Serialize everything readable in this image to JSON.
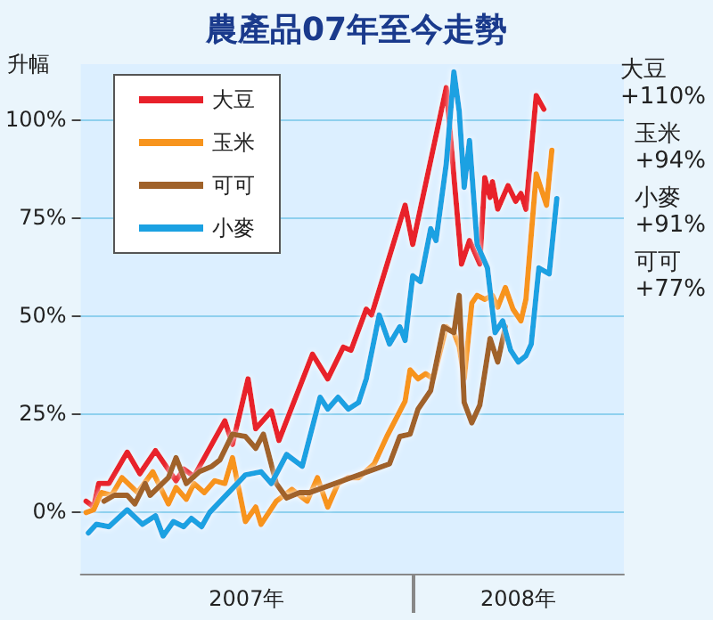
{
  "chart_data": {
    "type": "line",
    "title": "農產品07年至今走勢",
    "ylabel": "升幅",
    "annotations": [
      "大豆\n+110%",
      "玉米\n+94%",
      "小麥\n+91%",
      "可可\n+77%"
    ],
    "xlim": [
      2007,
      2008.636
    ],
    "xticks": [
      {
        "value": 2007.5,
        "label": "2007年"
      },
      {
        "value": 2008.318,
        "label": "2008年"
      }
    ],
    "ylim": [
      -16,
      114
    ],
    "yticks": [
      {
        "value": 0,
        "label": "0%"
      },
      {
        "value": 25,
        "label": "25%"
      },
      {
        "value": 50,
        "label": "50%"
      },
      {
        "value": 75,
        "label": "75%"
      },
      {
        "value": 100,
        "label": "100%"
      }
    ],
    "grid": "y",
    "legend": "top left",
    "marker": "none",
    "line_style": "solid",
    "series": [
      {
        "name": "大豆",
        "color": "#e8202a",
        "x": [
          2007.016,
          2007.039,
          2007.054,
          2007.085,
          2007.14,
          2007.178,
          2007.225,
          2007.287,
          2007.31,
          2007.341,
          2007.434,
          2007.457,
          2007.504,
          2007.527,
          2007.574,
          2007.597,
          2007.698,
          2007.744,
          2007.791,
          2007.814,
          2007.86,
          2007.876,
          2007.977,
          2008.0,
          2008.101,
          2008.147,
          2008.171,
          2008.202,
          2008.217,
          2008.233,
          2008.24,
          2008.256,
          2008.287,
          2008.31,
          2008.326,
          2008.341,
          2008.372,
          2008.395
        ],
        "values": [
          2.5,
          1,
          7,
          7,
          15,
          9.5,
          15.4,
          7.7,
          10.7,
          8.8,
          23,
          17,
          33.7,
          21,
          25.5,
          18,
          40,
          33.7,
          41.8,
          41,
          51.5,
          50,
          78,
          68,
          108,
          63,
          69,
          63,
          85,
          80,
          84,
          77,
          83,
          79,
          81,
          77,
          106,
          102.5
        ]
      },
      {
        "name": "玉米",
        "color": "#f7941d",
        "x": [
          2007.016,
          2007.039,
          2007.062,
          2007.093,
          2007.124,
          2007.171,
          2007.217,
          2007.264,
          2007.287,
          2007.318,
          2007.341,
          2007.372,
          2007.403,
          2007.434,
          2007.457,
          2007.496,
          2007.527,
          2007.543,
          2007.589,
          2007.636,
          2007.682,
          2007.713,
          2007.744,
          2007.775,
          2007.806,
          2007.837,
          2007.884,
          2007.922,
          2007.977,
          2007.992,
          2008.016,
          2008.039,
          2008.062,
          2008.101,
          2008.124,
          2008.14,
          2008.155,
          2008.178,
          2008.194,
          2008.217,
          2008.24,
          2008.256,
          2008.279,
          2008.302,
          2008.326,
          2008.341,
          2008.372,
          2008.403,
          2008.419
        ],
        "values": [
          -0.4,
          0.3,
          4.7,
          4,
          8.5,
          4.7,
          10,
          1.8,
          6,
          3,
          7,
          4.7,
          7.7,
          7,
          13.6,
          -2.7,
          1,
          -3.4,
          2.5,
          5.5,
          2.5,
          8.5,
          1,
          7,
          8.5,
          8.5,
          12,
          19,
          28,
          36,
          33.7,
          35,
          33.7,
          47,
          45.5,
          42,
          33.7,
          53,
          55,
          54,
          55,
          52,
          57,
          51.5,
          48.5,
          54,
          86,
          78,
          92
        ]
      },
      {
        "name": "可可",
        "color": "#a0622a",
        "x": [
          2007.07,
          2007.101,
          2007.14,
          2007.163,
          2007.194,
          2007.209,
          2007.264,
          2007.287,
          2007.318,
          2007.357,
          2007.395,
          2007.419,
          2007.457,
          2007.496,
          2007.527,
          2007.55,
          2007.589,
          2007.62,
          2007.659,
          2007.69,
          2007.93,
          2007.961,
          2007.992,
          2008.016,
          2008.054,
          2008.093,
          2008.124,
          2008.14,
          2008.155,
          2008.178,
          2008.202,
          2008.233,
          2008.256,
          2008.279
        ],
        "values": [
          2.5,
          4,
          4,
          1.8,
          7,
          4,
          8.5,
          13.6,
          7,
          10,
          11.4,
          13,
          19.6,
          19,
          16,
          19.6,
          7,
          3.3,
          4.7,
          4.7,
          12,
          19,
          19.6,
          26,
          30.7,
          47,
          45.5,
          55,
          27.7,
          22.5,
          27,
          44,
          38,
          47
        ]
      },
      {
        "name": "小麥",
        "color": "#1ba1e2",
        "x": [
          2007.023,
          2007.047,
          2007.085,
          2007.14,
          2007.186,
          2007.225,
          2007.248,
          2007.279,
          2007.31,
          2007.333,
          2007.364,
          2007.388,
          2007.496,
          2007.543,
          2007.574,
          2007.62,
          2007.667,
          2007.721,
          2007.744,
          2007.775,
          2007.806,
          2007.837,
          2007.86,
          2007.899,
          2007.93,
          2007.961,
          2007.977,
          2008.0,
          2008.023,
          2008.054,
          2008.07,
          2008.101,
          2008.124,
          2008.14,
          2008.155,
          2008.171,
          2008.194,
          2008.225,
          2008.248,
          2008.271,
          2008.295,
          2008.318,
          2008.341,
          2008.357,
          2008.38,
          2008.411,
          2008.434
        ],
        "values": [
          -5.6,
          -3.4,
          -4,
          0.3,
          -3.4,
          -1.2,
          -6.4,
          -2.7,
          -4,
          -1.9,
          -4,
          -0.4,
          9.2,
          10,
          7,
          14.4,
          11.4,
          29,
          26,
          29,
          26,
          27.7,
          33.7,
          50,
          42.6,
          47,
          43.5,
          60,
          58.5,
          72,
          69,
          88.6,
          112,
          102,
          82.6,
          94.5,
          68,
          62,
          45.5,
          48.5,
          41,
          38,
          39.6,
          42.6,
          62,
          60.5,
          79.7
        ]
      }
    ]
  }
}
